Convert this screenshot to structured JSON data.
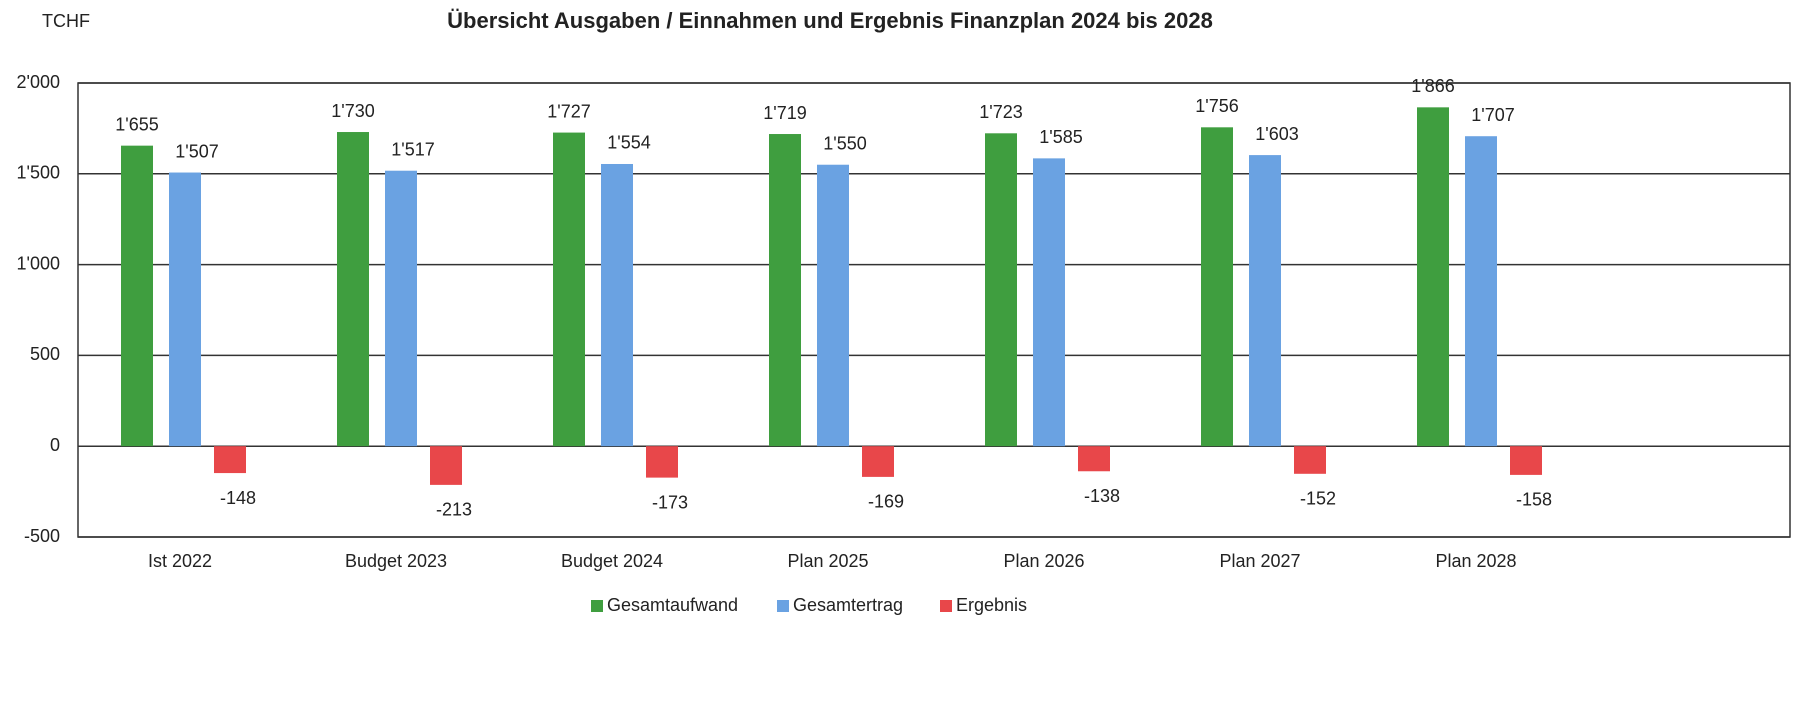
{
  "chart_data": {
    "type": "bar",
    "title": "Übersicht Ausgaben / Einnahmen und Ergebnis Finanzplan 2024 bis 2028",
    "y_label": "TCHF",
    "categories": [
      "Ist 2022",
      "Budget 2023",
      "Budget 2024",
      "Plan 2025",
      "Plan 2026",
      "Plan 2027",
      "Plan 2028"
    ],
    "series": [
      {
        "name": "Gesamtaufwand",
        "color": "#3f9e3f",
        "values": [
          1655,
          1730,
          1727,
          1719,
          1723,
          1756,
          1866
        ],
        "value_labels": [
          "1'655",
          "1'730",
          "1'727",
          "1'719",
          "1'723",
          "1'756",
          "1'866"
        ]
      },
      {
        "name": "Gesamtertrag",
        "color": "#6aa2e2",
        "values": [
          1507,
          1517,
          1554,
          1550,
          1585,
          1603,
          1707
        ],
        "value_labels": [
          "1'507",
          "1'517",
          "1'554",
          "1'550",
          "1'585",
          "1'603",
          "1'707"
        ]
      },
      {
        "name": "Ergebnis",
        "color": "#e8474a",
        "values": [
          -148,
          -213,
          -173,
          -169,
          -138,
          -152,
          -158
        ]
      }
    ],
    "ylim": [
      -500,
      2000
    ],
    "yticks": [
      -500,
      0,
      500,
      {
        "value": 1000,
        "label": "1'000"
      },
      {
        "value": 1500,
        "label": "1'500"
      },
      {
        "value": 2000,
        "label": "2'000"
      }
    ],
    "grid": true,
    "legend": "bottom"
  }
}
